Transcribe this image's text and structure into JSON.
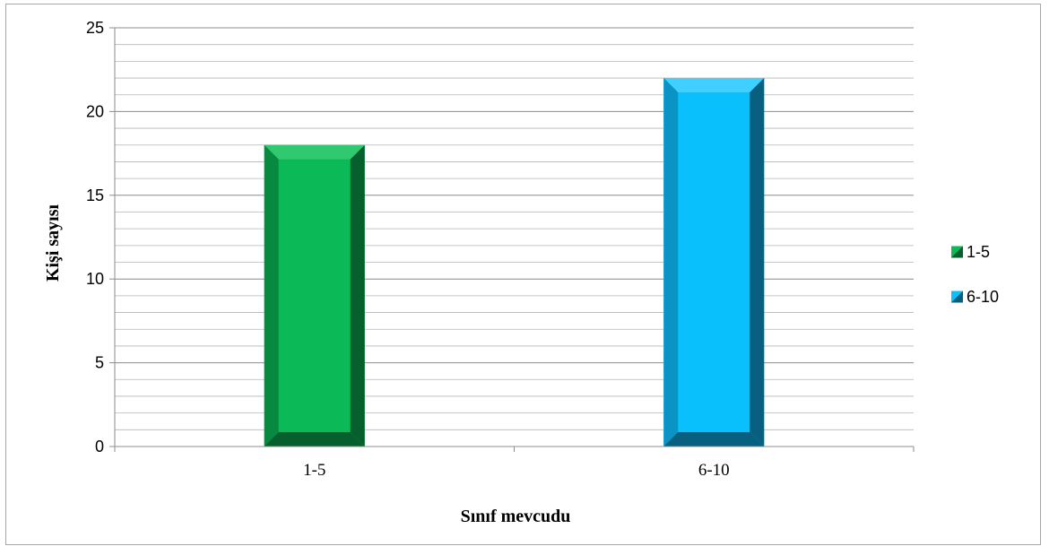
{
  "chart_data": {
    "type": "bar",
    "categories": [
      "1-5",
      "6-10"
    ],
    "values": [
      18,
      22
    ],
    "series": [
      {
        "name": "1-5",
        "values": [
          18,
          null
        ]
      },
      {
        "name": "6-10",
        "values": [
          null,
          22
        ]
      }
    ],
    "xlabel": "Sınıf mevcudu",
    "ylabel": "Kişi sayısı",
    "ylim": [
      0,
      25
    ],
    "yticks": [
      0,
      5,
      10,
      15,
      20,
      25
    ],
    "grid": true,
    "minor_grid": true,
    "legend": {
      "position": "right",
      "entries": [
        "1-5",
        "6-10"
      ]
    },
    "colors": {
      "1-5": {
        "face": "#0bb956",
        "dark": "#06602e",
        "mid": "#078a40",
        "light": "#30c96f"
      },
      "6-10": {
        "face": "#0ac0fc",
        "dark": "#076080",
        "mid": "#0a93c4",
        "light": "#3fd0ff"
      }
    }
  }
}
